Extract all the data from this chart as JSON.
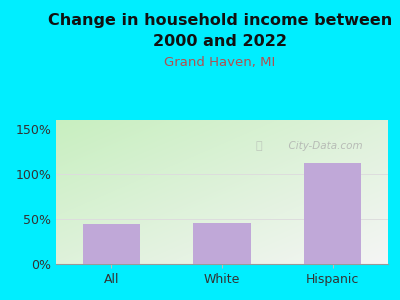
{
  "title_line1": "Change in household income between",
  "title_line2": "2000 and 2022",
  "subtitle": "Grand Haven, MI",
  "categories": [
    "All",
    "White",
    "Hispanic"
  ],
  "values": [
    45,
    46,
    112
  ],
  "bar_color": "#c0a8d8",
  "title_fontsize": 11.5,
  "subtitle_fontsize": 9.5,
  "subtitle_color": "#b05050",
  "tick_label_fontsize": 9,
  "ytick_labels": [
    "0%",
    "50%",
    "100%",
    "150%"
  ],
  "ytick_values": [
    0,
    50,
    100,
    150
  ],
  "ylim": [
    0,
    160
  ],
  "background_outer": "#00eeff",
  "bg_color_bottom_left": "#c8efc0",
  "bg_color_top_right": "#f0f0f0",
  "watermark": "  City-Data.com",
  "grid_color": "#dddddd",
  "axis_color": "#999999",
  "title_color": "#111111"
}
